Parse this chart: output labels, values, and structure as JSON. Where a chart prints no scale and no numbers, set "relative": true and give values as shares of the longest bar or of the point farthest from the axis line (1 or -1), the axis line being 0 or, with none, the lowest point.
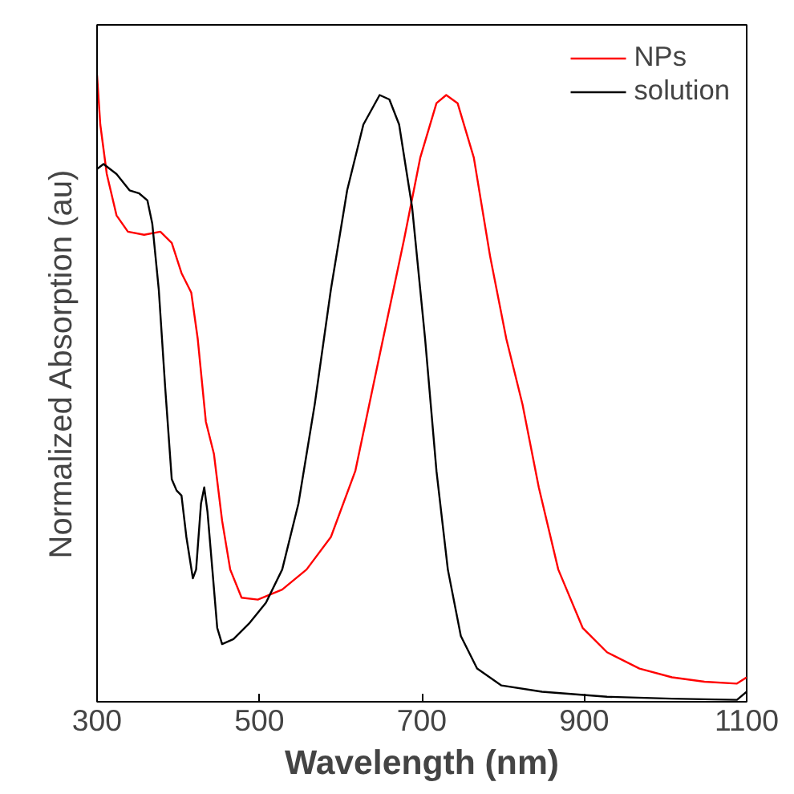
{
  "chart_data": {
    "type": "line",
    "xlabel": "Wavelength (nm)",
    "ylabel": "Normalized Absorption (au)",
    "relative": true,
    "xlim": [
      300,
      1100
    ],
    "xticks": [
      300,
      500,
      700,
      900,
      1100
    ],
    "tick_labels": "x",
    "grid": false,
    "legend": "top right",
    "marker": "none",
    "line_style": "solid",
    "series": [
      {
        "name": "NPs",
        "color": "#ff0000",
        "x": [
          300,
          304,
          312,
          324,
          338,
          358,
          378,
          392,
          404,
          416,
          424,
          434,
          444,
          454,
          464,
          478,
          498,
          528,
          558,
          588,
          618,
          648,
          678,
          698,
          718,
          730,
          744,
          764,
          784,
          804,
          824,
          844,
          868,
          898,
          928,
          968,
          1008,
          1048,
          1088,
          1100
        ],
        "values": [
          1.0,
          0.921,
          0.842,
          0.776,
          0.75,
          0.745,
          0.75,
          0.732,
          0.684,
          0.653,
          0.579,
          0.447,
          0.395,
          0.289,
          0.211,
          0.166,
          0.163,
          0.179,
          0.211,
          0.263,
          0.368,
          0.553,
          0.737,
          0.868,
          0.955,
          0.968,
          0.955,
          0.868,
          0.711,
          0.579,
          0.474,
          0.342,
          0.211,
          0.118,
          0.079,
          0.053,
          0.039,
          0.032,
          0.029,
          0.039
        ]
      },
      {
        "name": "solution",
        "color": "#000000",
        "x": [
          300,
          308,
          324,
          340,
          352,
          362,
          368,
          376,
          384,
          392,
          398,
          404,
          410,
          418,
          422,
          428,
          432,
          436,
          442,
          448,
          454,
          468,
          488,
          508,
          528,
          548,
          568,
          588,
          608,
          628,
          648,
          660,
          672,
          688,
          704,
          718,
          732,
          748,
          768,
          798,
          848,
          928,
          1008,
          1088,
          1100
        ],
        "values": [
          0.85,
          0.858,
          0.842,
          0.816,
          0.811,
          0.8,
          0.763,
          0.658,
          0.5,
          0.355,
          0.337,
          0.329,
          0.263,
          0.197,
          0.211,
          0.316,
          0.342,
          0.303,
          0.211,
          0.118,
          0.092,
          0.1,
          0.126,
          0.158,
          0.211,
          0.316,
          0.474,
          0.658,
          0.816,
          0.921,
          0.968,
          0.961,
          0.921,
          0.789,
          0.579,
          0.368,
          0.211,
          0.105,
          0.053,
          0.026,
          0.016,
          0.008,
          0.005,
          0.003,
          0.016
        ]
      }
    ]
  }
}
